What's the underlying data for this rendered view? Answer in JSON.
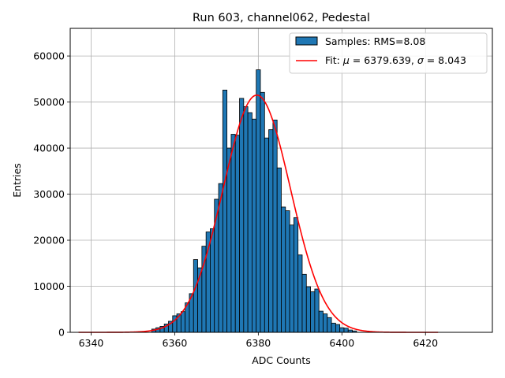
{
  "chart_data": {
    "type": "bar",
    "title": "Run 603, channel062, Pedestal",
    "xlabel": "ADC Counts",
    "ylabel": "Entries",
    "xlim": [
      6335,
      6436
    ],
    "ylim": [
      0,
      66000
    ],
    "xticks": [
      6340,
      6360,
      6380,
      6400,
      6420
    ],
    "yticks": [
      0,
      10000,
      20000,
      30000,
      40000,
      50000,
      60000
    ],
    "grid": true,
    "legend_position": "top-right",
    "colors": {
      "bars": "#1f77b4",
      "bar_edge": "#000000",
      "fit": "#ff0000",
      "grid": "#b0b0b0"
    },
    "histogram": {
      "name": "Samples: RMS=8.08",
      "bin_width": 1,
      "bins": [
        {
          "x": 6355,
          "y": 700
        },
        {
          "x": 6356,
          "y": 1000
        },
        {
          "x": 6357,
          "y": 1300
        },
        {
          "x": 6358,
          "y": 1800
        },
        {
          "x": 6359,
          "y": 2400
        },
        {
          "x": 6360,
          "y": 3600
        },
        {
          "x": 6361,
          "y": 4000
        },
        {
          "x": 6362,
          "y": 4500
        },
        {
          "x": 6363,
          "y": 6400
        },
        {
          "x": 6364,
          "y": 8400
        },
        {
          "x": 6365,
          "y": 15800
        },
        {
          "x": 6366,
          "y": 14000
        },
        {
          "x": 6367,
          "y": 18700
        },
        {
          "x": 6368,
          "y": 21800
        },
        {
          "x": 6369,
          "y": 22500
        },
        {
          "x": 6370,
          "y": 28900
        },
        {
          "x": 6371,
          "y": 32300
        },
        {
          "x": 6372,
          "y": 52600
        },
        {
          "x": 6373,
          "y": 40000
        },
        {
          "x": 6374,
          "y": 43000
        },
        {
          "x": 6375,
          "y": 42800
        },
        {
          "x": 6376,
          "y": 50800
        },
        {
          "x": 6377,
          "y": 49000
        },
        {
          "x": 6378,
          "y": 47700
        },
        {
          "x": 6379,
          "y": 46300
        },
        {
          "x": 6380,
          "y": 57000
        },
        {
          "x": 6381,
          "y": 52100
        },
        {
          "x": 6382,
          "y": 42200
        },
        {
          "x": 6383,
          "y": 44000
        },
        {
          "x": 6384,
          "y": 46100
        },
        {
          "x": 6385,
          "y": 35700
        },
        {
          "x": 6386,
          "y": 27200
        },
        {
          "x": 6387,
          "y": 26400
        },
        {
          "x": 6388,
          "y": 23300
        },
        {
          "x": 6389,
          "y": 24900
        },
        {
          "x": 6390,
          "y": 16800
        },
        {
          "x": 6391,
          "y": 12600
        },
        {
          "x": 6392,
          "y": 9900
        },
        {
          "x": 6393,
          "y": 8800
        },
        {
          "x": 6394,
          "y": 9400
        },
        {
          "x": 6395,
          "y": 4600
        },
        {
          "x": 6396,
          "y": 4000
        },
        {
          "x": 6397,
          "y": 3200
        },
        {
          "x": 6398,
          "y": 2000
        },
        {
          "x": 6399,
          "y": 1700
        },
        {
          "x": 6400,
          "y": 1000
        },
        {
          "x": 6401,
          "y": 900
        },
        {
          "x": 6402,
          "y": 500
        },
        {
          "x": 6403,
          "y": 300
        }
      ]
    },
    "fit": {
      "name": "Fit: μ = 6379.639, σ = 8.043",
      "label_prefix": "Fit: ",
      "mu_symbol": "μ",
      "mu_text": " = 6379.639, ",
      "sigma_symbol": "σ",
      "sigma_text": " = 8.043",
      "mu": 6379.639,
      "sigma": 8.043,
      "amplitude": 51500,
      "x_range": [
        6337,
        6423
      ]
    }
  }
}
